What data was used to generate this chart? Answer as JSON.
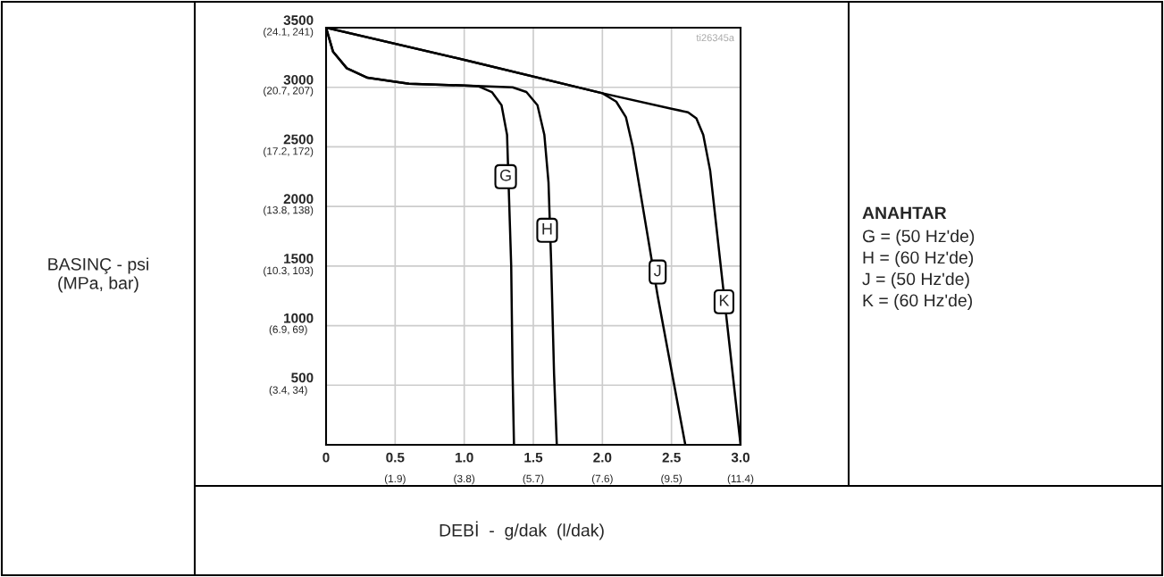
{
  "chart_data": {
    "type": "line",
    "xlabel": "DEBİ  -  g/dak  (l/dak)",
    "legend_title": "ANAHTAR",
    "xlim": [
      0,
      3.0
    ],
    "ylim": [
      0,
      3500
    ],
    "xticks": [
      0,
      {
        "value": 0.5,
        "label": "0.5"
      },
      {
        "value": 1.0,
        "label": "1.0"
      },
      {
        "value": 1.5,
        "label": "1.5"
      },
      {
        "value": 2.0,
        "label": "2.0"
      },
      {
        "value": 2.5,
        "label": "2.5"
      },
      {
        "value": 3.0,
        "label": "3.0"
      }
    ],
    "yticks": [
      500,
      1000,
      1500,
      2000,
      2500,
      3000,
      3500
    ],
    "x2lim": [
      0,
      11.4
    ],
    "x2ticks": [
      {
        "value": 1.9,
        "label": "(1.9)"
      },
      {
        "value": 3.8,
        "label": "(3.8)"
      },
      {
        "value": 5.7,
        "label": "(5.7)"
      },
      {
        "value": 7.6,
        "label": "(7.6)"
      },
      {
        "value": 9.5,
        "label": "(9.5)"
      },
      {
        "value": 11.4,
        "label": "(11.4)"
      }
    ],
    "y2lim": [
      0,
      24.1
    ],
    "y2ticks": [
      {
        "value": 3.4,
        "label": "(3.4,"
      },
      {
        "value": 6.9,
        "label": "(6.9,"
      },
      {
        "value": 10.3,
        "label": "(10.3,"
      },
      {
        "value": 13.8,
        "label": "(13.8,"
      },
      {
        "value": 17.2,
        "label": "(17.2,"
      },
      {
        "value": 20.7,
        "label": "(20.7,"
      },
      {
        "value": 24.1,
        "label": "(24.1,"
      }
    ],
    "y3lim": [
      0,
      241
    ],
    "y3ticks": [
      {
        "value": 34,
        "label": "34)"
      },
      {
        "value": 69,
        "label": "69)"
      },
      {
        "value": 103,
        "label": "103)"
      },
      {
        "value": 138,
        "label": "138)"
      },
      {
        "value": 172,
        "label": "172)"
      },
      {
        "value": 207,
        "label": "207)"
      },
      {
        "value": 241,
        "label": "241)"
      }
    ],
    "grid": true,
    "legend": false,
    "series": [
      {
        "color": "#000000",
        "x": [
          0,
          0.05,
          0.15,
          0.3,
          0.6,
          1.0,
          1.1,
          1.2,
          1.27,
          1.31,
          1.34,
          1.35,
          1.36
        ],
        "values": [
          3500,
          3300,
          3160,
          3080,
          3030,
          3015,
          3010,
          2960,
          2850,
          2600,
          1500,
          600,
          0
        ]
      },
      {
        "color": "#000000",
        "x": [
          0,
          0.05,
          0.15,
          0.3,
          0.6,
          1.0,
          1.35,
          1.45,
          1.53,
          1.58,
          1.61,
          1.63,
          1.65,
          1.67
        ],
        "values": [
          3500,
          3300,
          3160,
          3080,
          3030,
          3015,
          3000,
          2960,
          2850,
          2600,
          2200,
          1500,
          600,
          0
        ]
      },
      {
        "color": "#000000",
        "x": [
          0,
          1.0,
          2.0,
          2.1,
          2.17,
          2.22,
          2.4,
          2.6
        ],
        "values": [
          3500,
          3230,
          2950,
          2880,
          2750,
          2500,
          1250,
          0
        ]
      },
      {
        "color": "#000000",
        "x": [
          0,
          1.0,
          2.0,
          2.5,
          2.62,
          2.68,
          2.73,
          2.78,
          3.0
        ],
        "values": [
          3500,
          3230,
          2950,
          2820,
          2790,
          2740,
          2600,
          2300,
          0
        ]
      }
    ],
    "annotations": [
      {
        "text": "G",
        "x": 1.3,
        "y": 2250
      },
      {
        "text": "H",
        "x": 1.6,
        "y": 1800
      },
      {
        "text": "J",
        "x": 2.4,
        "y": 1450
      },
      {
        "text": "K",
        "x": 2.88,
        "y": 1200
      },
      "BASINÇ - psi\n(MPa, bar)",
      "G = (50 Hz'de)",
      "H = (60 Hz'de)",
      "J = (50 Hz'de)",
      "K = (60 Hz'de)",
      "ti26345a"
    ]
  }
}
